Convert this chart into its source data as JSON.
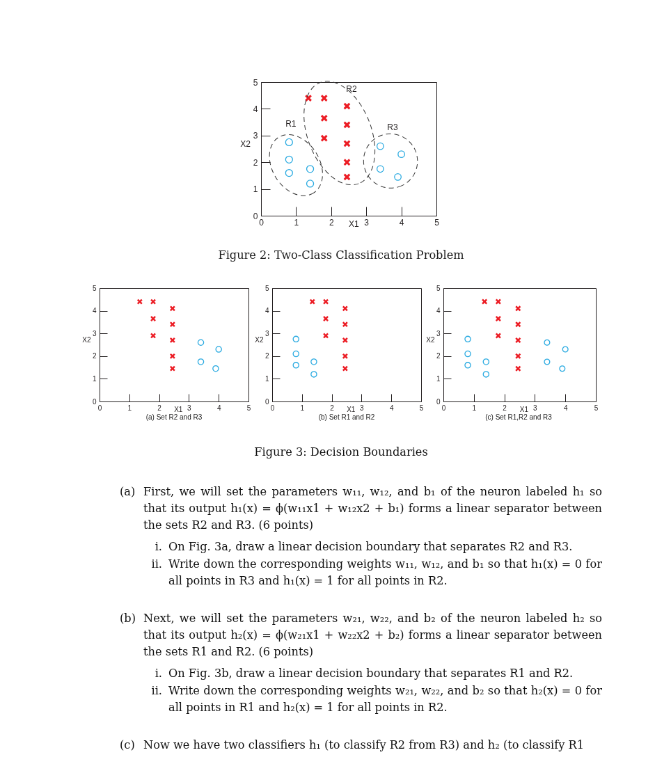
{
  "chart_data": [
    {
      "type": "scatter",
      "xlabel": "X1",
      "ylabel": "X2",
      "xlim": [
        0,
        5
      ],
      "ylim": [
        0,
        5
      ],
      "xticks": [
        0,
        1,
        2,
        3,
        4,
        5
      ],
      "yticks": [
        0,
        1,
        2,
        3,
        4,
        5
      ],
      "series": [
        {
          "color": "#29aae1",
          "marker": "circle",
          "x": [
            0.8,
            0.8,
            0.8,
            1.4,
            1.4
          ],
          "values": [
            2.75,
            2.1,
            1.6,
            1.75,
            1.2
          ]
        },
        {
          "color": "#ec1c24",
          "marker": "cross",
          "x": [
            1.35,
            1.8,
            1.8,
            1.8,
            2.45,
            2.45,
            2.45,
            2.45,
            2.45
          ],
          "values": [
            4.4,
            4.4,
            3.65,
            2.9,
            4.1,
            3.4,
            2.7,
            2.0,
            1.45
          ]
        },
        {
          "color": "#29aae1",
          "marker": "circle",
          "x": [
            3.4,
            4.0,
            3.4,
            3.9
          ],
          "values": [
            2.6,
            2.3,
            1.75,
            1.45
          ]
        }
      ],
      "annotations": [
        "R1",
        "R2",
        "R3",
        "Figure 2: Two-Class Classification Problem"
      ]
    },
    {
      "type": "scatter",
      "xlabel": "X1",
      "ylabel": "X2",
      "xlim": [
        0,
        5
      ],
      "ylim": [
        0,
        5
      ],
      "xticks": [
        0,
        1,
        2,
        3,
        4,
        5
      ],
      "yticks": [
        0,
        1,
        2,
        3,
        4,
        5
      ],
      "series": [
        {
          "color": "#ec1c24",
          "marker": "cross",
          "x": [
            1.35,
            1.8,
            1.8,
            1.8,
            2.45,
            2.45,
            2.45,
            2.45,
            2.45
          ],
          "values": [
            4.4,
            4.4,
            3.65,
            2.9,
            4.1,
            3.4,
            2.7,
            2.0,
            1.45
          ]
        },
        {
          "color": "#29aae1",
          "marker": "circle",
          "x": [
            3.4,
            4.0,
            3.4,
            3.9
          ],
          "values": [
            2.6,
            2.3,
            1.75,
            1.45
          ]
        }
      ],
      "annotations": [
        "(a) Set R2 and R3"
      ]
    },
    {
      "type": "scatter",
      "xlabel": "X1",
      "ylabel": "X2",
      "xlim": [
        0,
        5
      ],
      "ylim": [
        0,
        5
      ],
      "xticks": [
        0,
        1,
        2,
        3,
        4,
        5
      ],
      "yticks": [
        0,
        1,
        2,
        3,
        4,
        5
      ],
      "series": [
        {
          "color": "#29aae1",
          "marker": "circle",
          "x": [
            0.8,
            0.8,
            0.8,
            1.4,
            1.4
          ],
          "values": [
            2.75,
            2.1,
            1.6,
            1.75,
            1.2
          ]
        },
        {
          "color": "#ec1c24",
          "marker": "cross",
          "x": [
            1.35,
            1.8,
            1.8,
            1.8,
            2.45,
            2.45,
            2.45,
            2.45,
            2.45
          ],
          "values": [
            4.4,
            4.4,
            3.65,
            2.9,
            4.1,
            3.4,
            2.7,
            2.0,
            1.45
          ]
        }
      ],
      "annotations": [
        "(b) Set R1 and R2"
      ]
    },
    {
      "type": "scatter",
      "xlabel": "X1",
      "ylabel": "X2",
      "xlim": [
        0,
        5
      ],
      "ylim": [
        0,
        5
      ],
      "xticks": [
        0,
        1,
        2,
        3,
        4,
        5
      ],
      "yticks": [
        0,
        1,
        2,
        3,
        4,
        5
      ],
      "series": [
        {
          "color": "#29aae1",
          "marker": "circle",
          "x": [
            0.8,
            0.8,
            0.8,
            1.4,
            1.4
          ],
          "values": [
            2.75,
            2.1,
            1.6,
            1.75,
            1.2
          ]
        },
        {
          "color": "#ec1c24",
          "marker": "cross",
          "x": [
            1.35,
            1.8,
            1.8,
            1.8,
            2.45,
            2.45,
            2.45,
            2.45,
            2.45
          ],
          "values": [
            4.4,
            4.4,
            3.65,
            2.9,
            4.1,
            3.4,
            2.7,
            2.0,
            1.45
          ]
        },
        {
          "color": "#29aae1",
          "marker": "circle",
          "x": [
            3.4,
            4.0,
            3.4,
            3.9
          ],
          "values": [
            2.6,
            2.3,
            1.75,
            1.45
          ]
        }
      ],
      "annotations": [
        "(c) Set R1,R2 and R3"
      ]
    },
    {
      "type": "other",
      "annotations": [
        "Figure 3: Decision Boundaries",
        "(a) First, we will set the parameters w₁₁, w₁₂, and b₁ of the neuron labeled h₁ so that its output h₁(x) = ϕ(w₁₁x1 + w₁₂x2 + b₁) forms a linear separator between the sets R2 and R3. (6 points)",
        "i. On Fig. 3a, draw a linear decision boundary that separates R2 and R3.",
        "ii. Write down the corresponding weights w₁₁, w₁₂, and b₁ so that h₁(x) = 0 for all points in R3 and h₁(x) = 1 for all points in R2.",
        "(b) Next, we will set the parameters w₂₁, w₂₂, and b₂ of the neuron labeled h₂ so that its output h₂(x) = ϕ(w₂₁x1 + w₂₂x2 + b₂) forms a linear separator between the sets R1 and R2. (6 points)",
        "i. On Fig. 3b, draw a linear decision boundary that separates R1 and R2.",
        "ii. Write down the corresponding weights w₂₁, w₂₂, and b₂ so that h₂(x) = 0 for all points in R1 and h₂(x) = 1 for all points in R2.",
        "(c) Now we have two classifiers h₁ (to classify R2 from R3) and h₂ (to classify R1"
      ]
    }
  ]
}
